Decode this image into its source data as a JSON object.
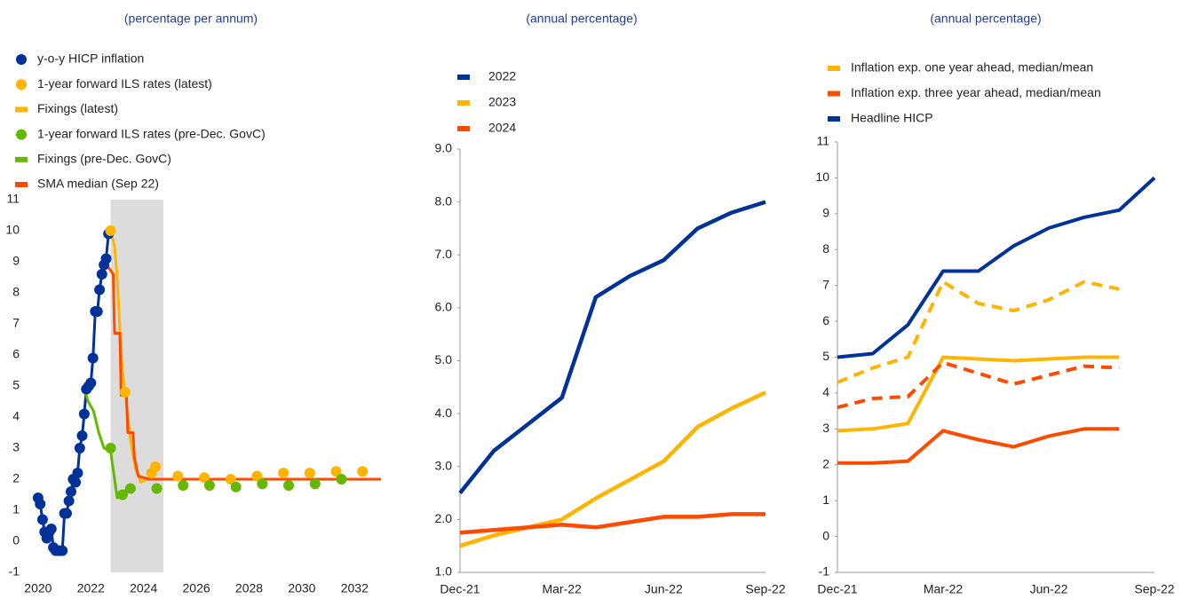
{
  "chart_data": [
    {
      "type": "line",
      "title": "(percentage per annum)",
      "xlim": [
        2019.6,
        2033.1
      ],
      "xticks": [
        2020,
        2022,
        2024,
        2026,
        2028,
        2030,
        2032
      ],
      "ylim": [
        -1,
        11
      ],
      "yticks": [
        -1,
        0,
        1,
        2,
        3,
        4,
        5,
        6,
        7,
        8,
        9,
        10,
        11
      ],
      "shaded_x": [
        2022.75,
        2024.75
      ],
      "shaded_color": "#dcdcdc",
      "series": [
        {
          "name": "y-o-y HICP inflation",
          "color": "#003299",
          "style": "dots-line",
          "x": [
            2020.0,
            2020.08,
            2020.17,
            2020.25,
            2020.33,
            2020.42,
            2020.5,
            2020.58,
            2020.67,
            2020.75,
            2020.83,
            2020.92,
            2021.0,
            2021.08,
            2021.17,
            2021.25,
            2021.33,
            2021.42,
            2021.5,
            2021.58,
            2021.67,
            2021.75,
            2021.83,
            2021.92,
            2022.0,
            2022.08,
            2022.17,
            2022.25,
            2022.33,
            2022.42,
            2022.5,
            2022.58,
            2022.67
          ],
          "values": [
            1.4,
            1.2,
            0.7,
            0.3,
            0.1,
            0.3,
            0.4,
            -0.2,
            -0.3,
            -0.3,
            -0.3,
            -0.3,
            0.9,
            0.9,
            1.3,
            1.6,
            2.0,
            1.9,
            2.2,
            3.0,
            3.4,
            4.1,
            4.9,
            5.0,
            5.1,
            5.9,
            7.4,
            7.4,
            8.1,
            8.6,
            8.9,
            9.1,
            9.9
          ]
        },
        {
          "name": "1-year forward ILS rates (latest)",
          "color": "#ffb400",
          "style": "dots",
          "x": [
            2022.75,
            2023.3,
            2024.3,
            2024.45,
            2025.3,
            2026.3,
            2027.3,
            2028.3,
            2029.3,
            2030.3,
            2031.3,
            2032.3
          ],
          "values": [
            10.0,
            4.8,
            2.2,
            2.4,
            2.1,
            2.05,
            2.0,
            2.1,
            2.2,
            2.2,
            2.25,
            2.25
          ]
        },
        {
          "name": "Fixings (latest)",
          "color": "#ffb400",
          "style": "line",
          "x": [
            2022.75,
            2022.9,
            2023.0,
            2023.1,
            2023.2,
            2023.3,
            2023.5,
            2023.7,
            2023.9,
            2024.1,
            2024.4
          ],
          "values": [
            10.0,
            9.5,
            8.5,
            6.8,
            5.5,
            4.8,
            3.3,
            2.3,
            1.9,
            2.0,
            2.2
          ]
        },
        {
          "name": "1-year forward ILS rates (pre-Dec. GovC)",
          "color": "#65b800",
          "style": "dots",
          "x": [
            2022.75,
            2023.2,
            2023.5,
            2024.5,
            2025.5,
            2026.5,
            2027.5,
            2028.5,
            2029.5,
            2030.5,
            2031.5
          ],
          "values": [
            3.0,
            1.5,
            1.7,
            1.7,
            1.8,
            1.8,
            1.75,
            1.85,
            1.8,
            1.85,
            2.0
          ]
        },
        {
          "name": "Fixings (pre-Dec. GovC)",
          "color": "#65b800",
          "style": "line",
          "x": [
            2021.75,
            2021.9,
            2022.1,
            2022.3,
            2022.5,
            2022.75,
            2022.9,
            2023.0,
            2023.2,
            2023.5
          ],
          "values": [
            4.9,
            4.5,
            4.2,
            3.5,
            3.0,
            2.9,
            2.0,
            1.4,
            1.6,
            1.7
          ]
        },
        {
          "name": "SMA median (Sep 22)",
          "color": "#ff4b00",
          "style": "line",
          "x": [
            2022.6,
            2022.85,
            2022.9,
            2023.1,
            2023.15,
            2023.35,
            2023.4,
            2023.6,
            2023.65,
            2023.8,
            2024.2,
            2033.0
          ],
          "values": [
            8.9,
            8.6,
            6.7,
            6.7,
            4.7,
            4.7,
            3.5,
            3.5,
            2.7,
            2.1,
            2.0,
            2.0
          ]
        }
      ]
    },
    {
      "type": "line",
      "title": "(annual percentage)",
      "categories": [
        "Dec-21",
        null,
        null,
        "Mar-22",
        null,
        null,
        "Jun-22",
        null,
        null,
        "Sep-22"
      ],
      "ylim": [
        1,
        9
      ],
      "yticks": [
        {
          "value": 1,
          "label": "1.0"
        },
        {
          "value": 2,
          "label": "2.0"
        },
        {
          "value": 3,
          "label": "3.0"
        },
        {
          "value": 4,
          "label": "4.0"
        },
        {
          "value": 5,
          "label": "5.0"
        },
        {
          "value": 6,
          "label": "6.0"
        },
        {
          "value": 7,
          "label": "7.0"
        },
        {
          "value": 8,
          "label": "8.0"
        },
        {
          "value": 9,
          "label": "9.0"
        }
      ],
      "series": [
        {
          "name": "2022",
          "color": "#003299",
          "style": "line",
          "values": [
            2.5,
            3.3,
            3.8,
            4.3,
            6.2,
            6.6,
            6.9,
            7.5,
            7.8,
            8.0
          ]
        },
        {
          "name": "2023",
          "color": "#ffb400",
          "style": "line",
          "values": [
            1.5,
            1.7,
            1.85,
            2.0,
            2.4,
            2.75,
            3.1,
            3.75,
            4.1,
            4.4
          ]
        },
        {
          "name": "2024",
          "color": "#ff4b00",
          "style": "line",
          "values": [
            1.75,
            1.8,
            1.85,
            1.9,
            1.85,
            1.95,
            2.05,
            2.05,
            2.1,
            2.1
          ]
        }
      ]
    },
    {
      "type": "line",
      "title": "(annual percentage)",
      "categories": [
        "Dec-21",
        null,
        null,
        "Mar-22",
        null,
        null,
        "Jun-22",
        null,
        null,
        "Sep-22"
      ],
      "ylim": [
        -1,
        11
      ],
      "yticks": [
        -1,
        0,
        1,
        2,
        3,
        4,
        5,
        6,
        7,
        8,
        9,
        10,
        11
      ],
      "series": [
        {
          "name": "Inflation exp. one year ahead, median/mean",
          "color": "#ffb400",
          "style": "line",
          "values": [
            2.95,
            3.0,
            3.15,
            5.0,
            4.95,
            4.9,
            4.95,
            5.0,
            5.0,
            null
          ],
          "mean_values": [
            4.3,
            4.7,
            5.0,
            7.1,
            6.5,
            6.3,
            6.6,
            7.1,
            6.9,
            null
          ]
        },
        {
          "name": "Inflation exp. three year ahead, median/mean",
          "color": "#ff4b00",
          "style": "line",
          "values": [
            2.05,
            2.05,
            2.1,
            2.95,
            2.7,
            2.5,
            2.8,
            3.0,
            3.0,
            null
          ],
          "mean_values": [
            3.6,
            3.85,
            3.9,
            4.85,
            4.55,
            4.25,
            4.5,
            4.75,
            4.7,
            null
          ]
        },
        {
          "name": "Headline HICP",
          "color": "#003299",
          "style": "line",
          "values": [
            5.0,
            5.1,
            5.9,
            7.4,
            7.4,
            8.1,
            8.6,
            8.9,
            9.1,
            10.0
          ]
        }
      ]
    }
  ]
}
